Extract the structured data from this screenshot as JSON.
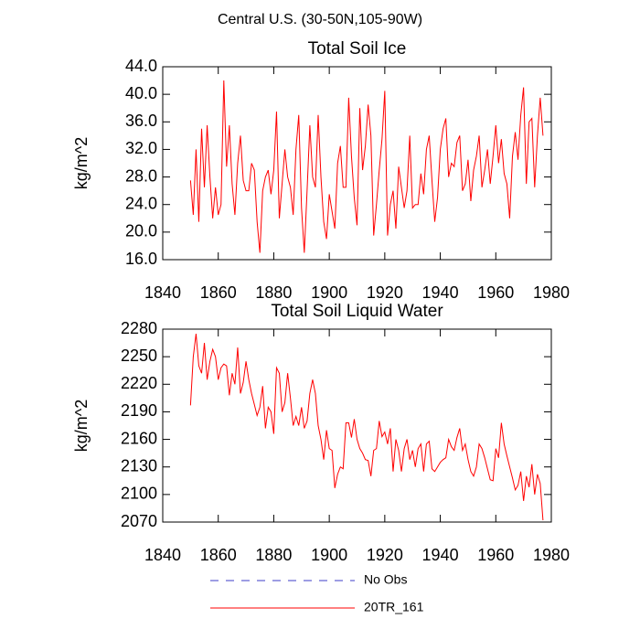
{
  "title": "Central U.S. (30-50N,105-90W)",
  "legend": [
    {
      "name": "No Obs",
      "color": "#3c3cc8",
      "dash": true
    },
    {
      "name": "20TR_161",
      "color": "#ff0000",
      "dash": false
    }
  ],
  "chart_data": [
    {
      "type": "line",
      "title": "Total Soil Ice",
      "y_label": "kg/m^2",
      "xlim": [
        1840,
        1980
      ],
      "xticks": [
        1840,
        1860,
        1880,
        1900,
        1920,
        1940,
        1960,
        1980
      ],
      "ylim": [
        16,
        44
      ],
      "yticks": [
        {
          "value": 16,
          "label": "16.0"
        },
        {
          "value": 20,
          "label": "20.0"
        },
        {
          "value": 24,
          "label": "24.0"
        },
        {
          "value": 28,
          "label": "28.0"
        },
        {
          "value": 32,
          "label": "32.0"
        },
        {
          "value": 36,
          "label": "36.0"
        },
        {
          "value": 40,
          "label": "40.0"
        },
        {
          "value": 44,
          "label": "44.0"
        }
      ],
      "x": [
        1850,
        1851,
        1852,
        1853,
        1854,
        1855,
        1856,
        1857,
        1858,
        1859,
        1860,
        1861,
        1862,
        1863,
        1864,
        1865,
        1866,
        1867,
        1868,
        1869,
        1870,
        1871,
        1872,
        1873,
        1874,
        1875,
        1876,
        1877,
        1878,
        1879,
        1880,
        1881,
        1882,
        1883,
        1884,
        1885,
        1886,
        1887,
        1888,
        1889,
        1890,
        1891,
        1892,
        1893,
        1894,
        1895,
        1896,
        1897,
        1898,
        1899,
        1900,
        1901,
        1902,
        1903,
        1904,
        1905,
        1906,
        1907,
        1908,
        1909,
        1910,
        1911,
        1912,
        1913,
        1914,
        1915,
        1916,
        1917,
        1918,
        1919,
        1920,
        1921,
        1922,
        1923,
        1924,
        1925,
        1926,
        1927,
        1928,
        1929,
        1930,
        1931,
        1932,
        1933,
        1934,
        1935,
        1936,
        1937,
        1938,
        1939,
        1940,
        1941,
        1942,
        1943,
        1944,
        1945,
        1946,
        1947,
        1948,
        1949,
        1950,
        1951,
        1952,
        1953,
        1954,
        1955,
        1956,
        1957,
        1958,
        1959,
        1960,
        1961,
        1962,
        1963,
        1964,
        1965,
        1966,
        1967,
        1968,
        1969,
        1970,
        1971,
        1972,
        1973,
        1974,
        1975,
        1976,
        1977
      ],
      "series": [
        {
          "color": "#ff0000",
          "values": [
            27.5,
            22.5,
            32,
            21.5,
            35,
            26.5,
            35.5,
            28,
            22,
            26.5,
            22.5,
            24,
            42,
            29.5,
            35.5,
            27,
            22.5,
            30,
            34,
            27.5,
            26,
            26,
            30,
            29,
            21.5,
            17,
            26,
            28,
            29,
            25.5,
            29,
            37.5,
            22,
            27,
            32,
            28,
            26.5,
            22.5,
            32,
            37,
            23.5,
            17,
            26,
            35.5,
            28,
            26.5,
            37,
            28,
            21.5,
            19,
            25.5,
            23,
            20.5,
            30,
            32.5,
            26.5,
            26.5,
            39.5,
            31,
            25,
            21,
            38,
            29,
            32.5,
            38.5,
            34,
            19.5,
            24,
            29,
            33.5,
            40.5,
            19.5,
            24,
            26,
            20.5,
            29.5,
            26.5,
            23.5,
            26,
            34,
            23.5,
            24,
            24,
            28.5,
            25.5,
            32,
            34,
            27.5,
            21.5,
            25,
            32,
            35,
            36.5,
            28,
            30,
            29.5,
            33,
            34,
            26,
            27,
            30.5,
            24.5,
            29,
            31,
            34,
            26.5,
            29,
            32,
            27,
            31,
            35.5,
            30,
            33.5,
            28.5,
            27,
            22,
            31,
            34.5,
            30.5,
            37,
            41,
            27,
            36,
            36.5,
            26.5,
            34,
            39.5,
            34
          ]
        }
      ]
    },
    {
      "type": "line",
      "title": "Total Soil Liquid Water",
      "y_label": "kg/m^2",
      "xlim": [
        1840,
        1980
      ],
      "xticks": [
        1840,
        1860,
        1880,
        1900,
        1920,
        1940,
        1960,
        1980
      ],
      "ylim": [
        2070,
        2280
      ],
      "yticks": [
        2070,
        2100,
        2130,
        2160,
        2190,
        2220,
        2250,
        2280
      ],
      "x": [
        1850,
        1851,
        1852,
        1853,
        1854,
        1855,
        1856,
        1857,
        1858,
        1859,
        1860,
        1861,
        1862,
        1863,
        1864,
        1865,
        1866,
        1867,
        1868,
        1869,
        1870,
        1871,
        1872,
        1873,
        1874,
        1875,
        1876,
        1877,
        1878,
        1879,
        1880,
        1881,
        1882,
        1883,
        1884,
        1885,
        1886,
        1887,
        1888,
        1889,
        1890,
        1891,
        1892,
        1893,
        1894,
        1895,
        1896,
        1897,
        1898,
        1899,
        1900,
        1901,
        1902,
        1903,
        1904,
        1905,
        1906,
        1907,
        1908,
        1909,
        1910,
        1911,
        1912,
        1913,
        1914,
        1915,
        1916,
        1917,
        1918,
        1919,
        1920,
        1921,
        1922,
        1923,
        1924,
        1925,
        1926,
        1927,
        1928,
        1929,
        1930,
        1931,
        1932,
        1933,
        1934,
        1935,
        1936,
        1937,
        1938,
        1939,
        1940,
        1941,
        1942,
        1943,
        1944,
        1945,
        1946,
        1947,
        1948,
        1949,
        1950,
        1951,
        1952,
        1953,
        1954,
        1955,
        1956,
        1957,
        1958,
        1959,
        1960,
        1961,
        1962,
        1963,
        1964,
        1965,
        1966,
        1967,
        1968,
        1969,
        1970,
        1971,
        1972,
        1973,
        1974,
        1975,
        1976,
        1977
      ],
      "series": [
        {
          "color": "#ff0000",
          "values": [
            2197,
            2250,
            2275,
            2240,
            2232,
            2265,
            2225,
            2245,
            2258,
            2250,
            2225,
            2238,
            2242,
            2240,
            2208,
            2232,
            2220,
            2260,
            2210,
            2222,
            2245,
            2225,
            2210,
            2198,
            2186,
            2195,
            2218,
            2172,
            2195,
            2190,
            2166,
            2238,
            2232,
            2190,
            2200,
            2232,
            2205,
            2175,
            2185,
            2175,
            2195,
            2172,
            2180,
            2210,
            2225,
            2210,
            2175,
            2160,
            2138,
            2170,
            2150,
            2148,
            2107,
            2122,
            2130,
            2128,
            2178,
            2178,
            2162,
            2182,
            2160,
            2150,
            2145,
            2138,
            2137,
            2120,
            2148,
            2150,
            2180,
            2163,
            2168,
            2155,
            2172,
            2125,
            2160,
            2148,
            2125,
            2150,
            2160,
            2138,
            2148,
            2130,
            2150,
            2155,
            2125,
            2155,
            2158,
            2128,
            2125,
            2130,
            2135,
            2138,
            2140,
            2160,
            2152,
            2148,
            2162,
            2172,
            2148,
            2155,
            2138,
            2125,
            2120,
            2130,
            2155,
            2150,
            2140,
            2128,
            2116,
            2115,
            2150,
            2140,
            2178,
            2155,
            2142,
            2130,
            2118,
            2105,
            2110,
            2125,
            2093,
            2120,
            2108,
            2133,
            2100,
            2122,
            2112,
            2072
          ]
        }
      ]
    }
  ]
}
